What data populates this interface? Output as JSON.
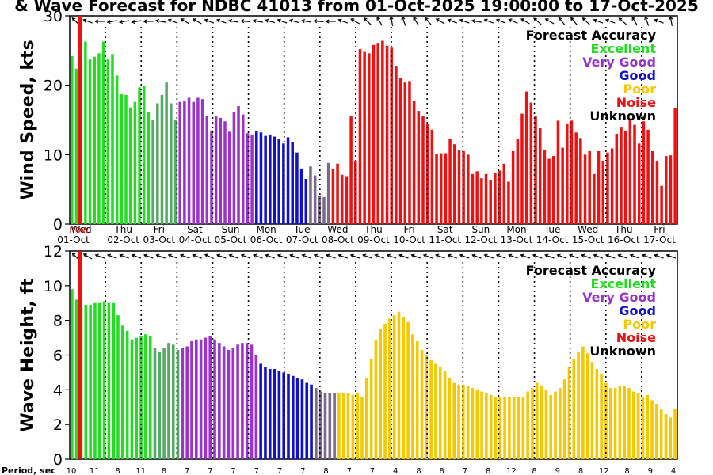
{
  "title": "& Wave Forecast for NDBC 41013 from 01-Oct-2025 19:00:00 to 17-Oct-2025",
  "now_label": "now",
  "period_label": "Period, sec",
  "periods": [
    "10",
    "11",
    "8",
    "11",
    "8",
    "7",
    "7",
    "7",
    "7",
    "7",
    "7",
    "8",
    "7",
    "7",
    "4",
    "8",
    "8",
    "7",
    "8",
    "12",
    "8",
    "9",
    "8",
    "12",
    "8",
    "9",
    "4"
  ],
  "days": [
    {
      "dow": "Wed",
      "date": "01-Oct"
    },
    {
      "dow": "Thu",
      "date": "02-Oct"
    },
    {
      "dow": "Fri",
      "date": "03-Oct"
    },
    {
      "dow": "Sat",
      "date": "04-Oct"
    },
    {
      "dow": "Sun",
      "date": "05-Oct"
    },
    {
      "dow": "Mon",
      "date": "06-Oct"
    },
    {
      "dow": "Tue",
      "date": "07-Oct"
    },
    {
      "dow": "Wed",
      "date": "08-Oct"
    },
    {
      "dow": "Thu",
      "date": "09-Oct"
    },
    {
      "dow": "Fri",
      "date": "10-Oct"
    },
    {
      "dow": "Sat",
      "date": "11-Oct"
    },
    {
      "dow": "Sun",
      "date": "12-Oct"
    },
    {
      "dow": "Mon",
      "date": "13-Oct"
    },
    {
      "dow": "Tue",
      "date": "14-Oct"
    },
    {
      "dow": "Wed",
      "date": "15-Oct"
    },
    {
      "dow": "Thu",
      "date": "16-Oct"
    },
    {
      "dow": "Fri",
      "date": "17-Oct"
    }
  ],
  "legend": {
    "title": "Forecast Accuracy",
    "items": [
      {
        "label": "Excellent",
        "color": "#22dd22"
      },
      {
        "label": "Very Good",
        "color": "#9933cc"
      },
      {
        "label": "Good",
        "color": "#1111cc"
      },
      {
        "label": "Poor",
        "color": "#f5c800"
      },
      {
        "label": "Noise",
        "color": "#ee1111"
      },
      {
        "label": "Unknown",
        "color": "#000000"
      }
    ]
  },
  "colors": {
    "excellent": "#22dd22",
    "transition": "#55aa66",
    "very_good": "#9933cc",
    "good": "#1111cc",
    "gray": "#7a6a8a",
    "poor": "#f5c800",
    "noise": "#ee1111",
    "now_line": "#ee1111"
  },
  "chart_data": [
    {
      "type": "bar",
      "ylabel": "Wind Speed, kts",
      "ylim": [
        0,
        30
      ],
      "yticks": [
        0,
        10,
        20,
        30
      ],
      "values": [
        24.2,
        22.4,
        20.9,
        26.3,
        23.7,
        24.1,
        24.6,
        26.3,
        23.7,
        24.5,
        21.4,
        18.7,
        18.6,
        16.8,
        17.6,
        19.7,
        19.9,
        16.2,
        15.0,
        17.4,
        18.6,
        20.4,
        17.4,
        15.0,
        17.6,
        17.8,
        18.2,
        17.6,
        18.2,
        18.0,
        15.6,
        13.5,
        15.5,
        15.3,
        14.8,
        13.3,
        16.2,
        17.0,
        15.8,
        13.1,
        12.9,
        13.4,
        13.2,
        12.7,
        12.9,
        12.6,
        12.2,
        11.6,
        12.5,
        11.8,
        10.3,
        8.0,
        6.5,
        8.3,
        7.0,
        4.0,
        3.9,
        8.8,
        7.9,
        8.7,
        7.1,
        6.9,
        15.5,
        9.0,
        25.2,
        24.8,
        24.6,
        25.8,
        26.1,
        26.4,
        25.7,
        25.4,
        22.8,
        21.1,
        20.4,
        20.6,
        17.8,
        16.3,
        15.5,
        14.5,
        13.6,
        10.1,
        10.2,
        10.2,
        12.3,
        11.5,
        10.6,
        10.5,
        10.0,
        7.2,
        7.6,
        6.6,
        7.2,
        6.3,
        7.3,
        7.7,
        8.7,
        6.1,
        10.5,
        12.2,
        15.9,
        19.1,
        17.5,
        15.5,
        13.8,
        10.7,
        9.4,
        9.8,
        14.9,
        11.0,
        14.5,
        14.9,
        13.2,
        12.4,
        10.0,
        10.5,
        7.2,
        10.5,
        9.1,
        10.3,
        10.9,
        13.0,
        13.9,
        13.4,
        15.0,
        14.3,
        11.6,
        14.8,
        13.6,
        10.5,
        9.0,
        5.5,
        9.8,
        9.9,
        16.7
      ],
      "category_boundaries": {
        "excellent_end": 17,
        "transition_end": 23,
        "very_good_end": 40,
        "good_end": 52,
        "gray_end": 57
      },
      "arrows_deg": [
        225,
        200,
        180,
        170,
        170,
        170,
        180,
        190,
        200,
        210,
        210,
        200,
        200,
        190,
        185,
        190,
        195,
        200,
        195,
        190,
        185,
        180,
        200,
        210,
        225,
        240,
        260,
        250,
        240,
        230,
        210,
        200,
        200,
        190,
        200,
        200,
        205,
        210,
        220,
        210,
        230,
        230,
        225,
        200,
        200,
        220,
        240,
        250,
        200,
        260
      ]
    },
    {
      "type": "bar",
      "ylabel": "Wave Height, ft",
      "ylim": [
        0,
        12
      ],
      "yticks": [
        0,
        2,
        4,
        6,
        8,
        10,
        12
      ],
      "values": [
        9.8,
        9.2,
        8.7,
        8.9,
        8.9,
        9.0,
        9.0,
        9.1,
        9.0,
        9.0,
        8.3,
        7.7,
        7.4,
        6.9,
        7.0,
        7.1,
        7.2,
        7.1,
        6.4,
        6.2,
        6.4,
        6.7,
        6.6,
        6.3,
        6.4,
        6.5,
        6.8,
        6.9,
        6.9,
        7.0,
        7.1,
        6.9,
        6.7,
        6.5,
        6.3,
        6.4,
        6.6,
        6.7,
        6.7,
        6.6,
        6.0,
        5.5,
        5.3,
        5.2,
        5.2,
        5.1,
        5.0,
        4.9,
        4.8,
        4.7,
        4.6,
        4.4,
        4.3,
        4.1,
        3.9,
        3.8,
        3.8,
        3.8,
        3.8,
        3.8,
        3.8,
        3.7,
        3.8,
        3.6,
        4.7,
        5.8,
        6.9,
        7.5,
        7.8,
        8.1,
        8.3,
        8.5,
        8.2,
        7.9,
        7.2,
        6.8,
        6.3,
        6.0,
        5.7,
        5.5,
        5.3,
        5.1,
        4.7,
        4.4,
        4.3,
        4.3,
        4.2,
        4.1,
        4.0,
        3.9,
        3.8,
        3.7,
        3.6,
        3.6,
        3.6,
        3.6,
        3.6,
        3.6,
        3.6,
        3.9,
        4.1,
        4.4,
        4.2,
        4.0,
        3.7,
        3.9,
        4.1,
        4.6,
        5.3,
        5.8,
        6.2,
        6.5,
        6.1,
        5.6,
        5.2,
        4.9,
        4.4,
        4.1,
        4.1,
        4.2,
        4.2,
        4.1,
        3.9,
        3.8,
        3.6,
        3.7,
        3.4,
        3.2,
        2.9,
        2.6,
        2.4,
        2.9
      ],
      "category_boundaries": {
        "excellent_end": 17,
        "transition_end": 23,
        "very_good_end": 40,
        "good_end": 52,
        "gray_end": 57
      },
      "arrows_deg": [
        225,
        210,
        200,
        200,
        200,
        200,
        200,
        200,
        200,
        200,
        200,
        205,
        200,
        200,
        200,
        200,
        200,
        200,
        200,
        200,
        200,
        200,
        200,
        200,
        200,
        200,
        200,
        200,
        200,
        200,
        200,
        200,
        200,
        200,
        200,
        200,
        200,
        200,
        200,
        200,
        200,
        200,
        200,
        200,
        200,
        200,
        200,
        200,
        200,
        200
      ]
    }
  ]
}
